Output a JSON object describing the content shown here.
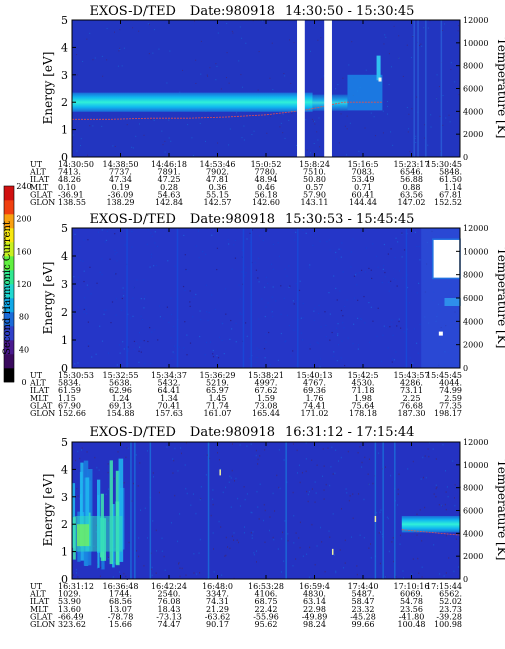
{
  "panels": [
    {
      "title": "EXOS-D/TED",
      "date": "Date:980918",
      "time_range": "14:30:50 - 15:30:45",
      "ylabel": "Energy [eV]",
      "y2label": "Temperature [K]",
      "orbit_table": {
        "row_labels": [
          "UT",
          "ALT",
          "ILAT",
          "MLT",
          "GLAT",
          "GLON"
        ],
        "columns": [
          [
            "14:30:50",
            "7413.",
            "48.26",
            "0.10",
            "-36.91",
            "138.55"
          ],
          [
            "14:38:50",
            "7737.",
            "47.34",
            "0.19",
            "-36.09",
            "138.29"
          ],
          [
            "14:46:18",
            "7891.",
            "47.25",
            "0.28",
            "54.63",
            "142.84"
          ],
          [
            "14:53:46",
            "7902.",
            "47.81",
            "0.36",
            "55.15",
            "142.57"
          ],
          [
            "15:0:52",
            "7780.",
            "48.94",
            "0.46",
            "56.18",
            "142.60"
          ],
          [
            "15:8:24",
            "7510.",
            "50.80",
            "0.57",
            "57.90",
            "143.11"
          ],
          [
            "15:16:5",
            "7083.",
            "53.49",
            "0.71",
            "60.41",
            "144.44"
          ],
          [
            "15:23:17",
            "6546.",
            "56.88",
            "0.88",
            "63.56",
            "147.02"
          ],
          [
            "15:30:45",
            "5848.",
            "61.50",
            "1.14",
            "67.81",
            "152.52"
          ]
        ]
      }
    },
    {
      "title": "EXOS-D/TED",
      "date": "Date:980918",
      "time_range": "15:30:53 - 15:45:45",
      "ylabel": "Energy [eV]",
      "y2label": "Temperature [K]",
      "orbit_table": {
        "row_labels": [
          "UT",
          "ALT",
          "ILAT",
          "MLT",
          "GLAT",
          "GLON"
        ],
        "columns": [
          [
            "15:30:53",
            "5834.",
            "61.59",
            "1.15",
            "67.90",
            "152.66"
          ],
          [
            "15:32:55",
            "5638.",
            "62.96",
            "1.24",
            "69.13",
            "154.88"
          ],
          [
            "15:34:37",
            "5432.",
            "64.41",
            "1.34",
            "70.41",
            "157.63"
          ],
          [
            "15:36:29",
            "5219.",
            "65.97",
            "1.45",
            "71.74",
            "161.07"
          ],
          [
            "15:38:21",
            "4997.",
            "67.62",
            "1.59",
            "73.08",
            "165.44"
          ],
          [
            "15:40:13",
            "4767.",
            "69.36",
            "1.76",
            "74.41",
            "171.02"
          ],
          [
            "15:42:5",
            "4530.",
            "71.18",
            "1.98",
            "75.64",
            "178.18"
          ],
          [
            "15:43:57",
            "4286.",
            "73.11",
            "2.25",
            "76.68",
            "187.30"
          ],
          [
            "15:45:45",
            "4044.",
            "74.99",
            "2.59",
            "77.35",
            "198.17"
          ]
        ]
      }
    },
    {
      "title": "EXOS-D/TED",
      "date": "Date:980918",
      "time_range": "16:31:12 - 17:15:44",
      "ylabel": "Energy [eV]",
      "y2label": "Temperature [K]",
      "orbit_table": {
        "row_labels": [
          "UT",
          "ALT",
          "ILAT",
          "MLT",
          "GLAT",
          "GLON"
        ],
        "columns": [
          [
            "16:31:12",
            "1029.",
            "53.90",
            "13.60",
            "-66.49",
            "323.62"
          ],
          [
            "16:36:48",
            "1744.",
            "68.56",
            "13.07",
            "-78.78",
            "15.66"
          ],
          [
            "16:42:24",
            "2540.",
            "76.08",
            "18.43",
            "-73.13",
            "74.47"
          ],
          [
            "16:48:0",
            "3347.",
            "74.31",
            "21.29",
            "-63.62",
            "90.17"
          ],
          [
            "16:53:28",
            "4106.",
            "68.75",
            "22.42",
            "-55.96",
            "95.62"
          ],
          [
            "16:59:4",
            "4830.",
            "63.14",
            "22.98",
            "-49.89",
            "98.24"
          ],
          [
            "17:4:40",
            "5487.",
            "58.47",
            "23.32",
            "-45.28",
            "99.66"
          ],
          [
            "17:10:16",
            "6069.",
            "54.78",
            "23.56",
            "-41.80",
            "100.48"
          ],
          [
            "17:15:44",
            "6562.",
            "52.02",
            "23.73",
            "-39.28",
            "100.98"
          ]
        ]
      }
    }
  ],
  "colorbar": {
    "label": "Second Harmonic Current",
    "ticks": [
      "0",
      "40",
      "80",
      "120",
      "160",
      "200",
      "240"
    ],
    "colors": [
      "#000000",
      "#3a0a5e",
      "#4a1a8e",
      "#3040c8",
      "#1a6ad8",
      "#10a8e8",
      "#20d8d0",
      "#30e890",
      "#60f040",
      "#c8f020",
      "#f8e810",
      "#f8a010",
      "#f04010",
      "#d01010"
    ]
  },
  "chart_data": [
    {
      "type": "heatmap",
      "title": "EXOS-D/TED  Date:980918  14:30:50 - 15:30:45",
      "xlabel": "UT",
      "x": [
        "14:30:50",
        "14:38:50",
        "14:46:18",
        "14:53:46",
        "15:0:52",
        "15:8:24",
        "15:16:5",
        "15:23:17",
        "15:30:45"
      ],
      "ylabel": "Energy [eV]",
      "ylim": [
        0,
        5
      ],
      "y_ticks": [
        0,
        1,
        2,
        3,
        4,
        5
      ],
      "y2label": "Temperature [K]",
      "y2lim": [
        0,
        12000
      ],
      "y2_ticks": [
        0,
        2000,
        4000,
        6000,
        8000,
        10000,
        12000
      ],
      "features": {
        "band_center_eV": 2.0,
        "band_halfwidth_eV": 0.35,
        "band_extent_x_fraction": [
          0,
          0.62
        ],
        "data_gaps_x_fraction": [
          [
            0.58,
            0.6
          ],
          [
            0.65,
            0.67
          ]
        ],
        "temperature_trace_K": [
          3300,
          3300,
          3400,
          3400,
          3500,
          3700,
          4100,
          4800,
          4800
        ]
      }
    },
    {
      "type": "heatmap",
      "title": "EXOS-D/TED  Date:980918  15:30:53 - 15:45:45",
      "xlabel": "UT",
      "x": [
        "15:30:53",
        "15:32:55",
        "15:34:37",
        "15:36:29",
        "15:38:21",
        "15:40:13",
        "15:42:5",
        "15:43:57",
        "15:45:45"
      ],
      "ylabel": "Energy [eV]",
      "ylim": [
        0,
        5
      ],
      "y_ticks": [
        0,
        1,
        2,
        3,
        4,
        5
      ],
      "y2label": "Temperature [K]",
      "y2lim": [
        0,
        12000
      ],
      "y2_ticks": [
        0,
        2000,
        4000,
        6000,
        8000,
        10000,
        12000
      ],
      "features": {
        "background_level": 100,
        "bright_patch_x_fraction": [
          0.93,
          1.0
        ],
        "bright_patch_eV": [
          3.2,
          4.6
        ]
      }
    },
    {
      "type": "heatmap",
      "title": "EXOS-D/TED  Date:980918  16:31:12 - 17:15:44",
      "xlabel": "UT",
      "x": [
        "16:31:12",
        "16:36:48",
        "16:42:24",
        "16:48:0",
        "16:53:28",
        "16:59:4",
        "17:4:40",
        "17:10:16",
        "17:15:44"
      ],
      "ylabel": "Energy [eV]",
      "ylim": [
        0,
        5
      ],
      "y_ticks": [
        0,
        1,
        2,
        3,
        4,
        5
      ],
      "y2label": "Temperature [K]",
      "y2lim": [
        0,
        12000
      ],
      "y2_ticks": [
        0,
        2000,
        4000,
        6000,
        8000,
        10000,
        12000
      ],
      "features": {
        "early_noisy_x_fraction": [
          0,
          0.13
        ],
        "late_band_x_fraction": [
          0.85,
          1.0
        ],
        "late_band_eV": [
          1.7,
          2.3
        ]
      }
    }
  ]
}
